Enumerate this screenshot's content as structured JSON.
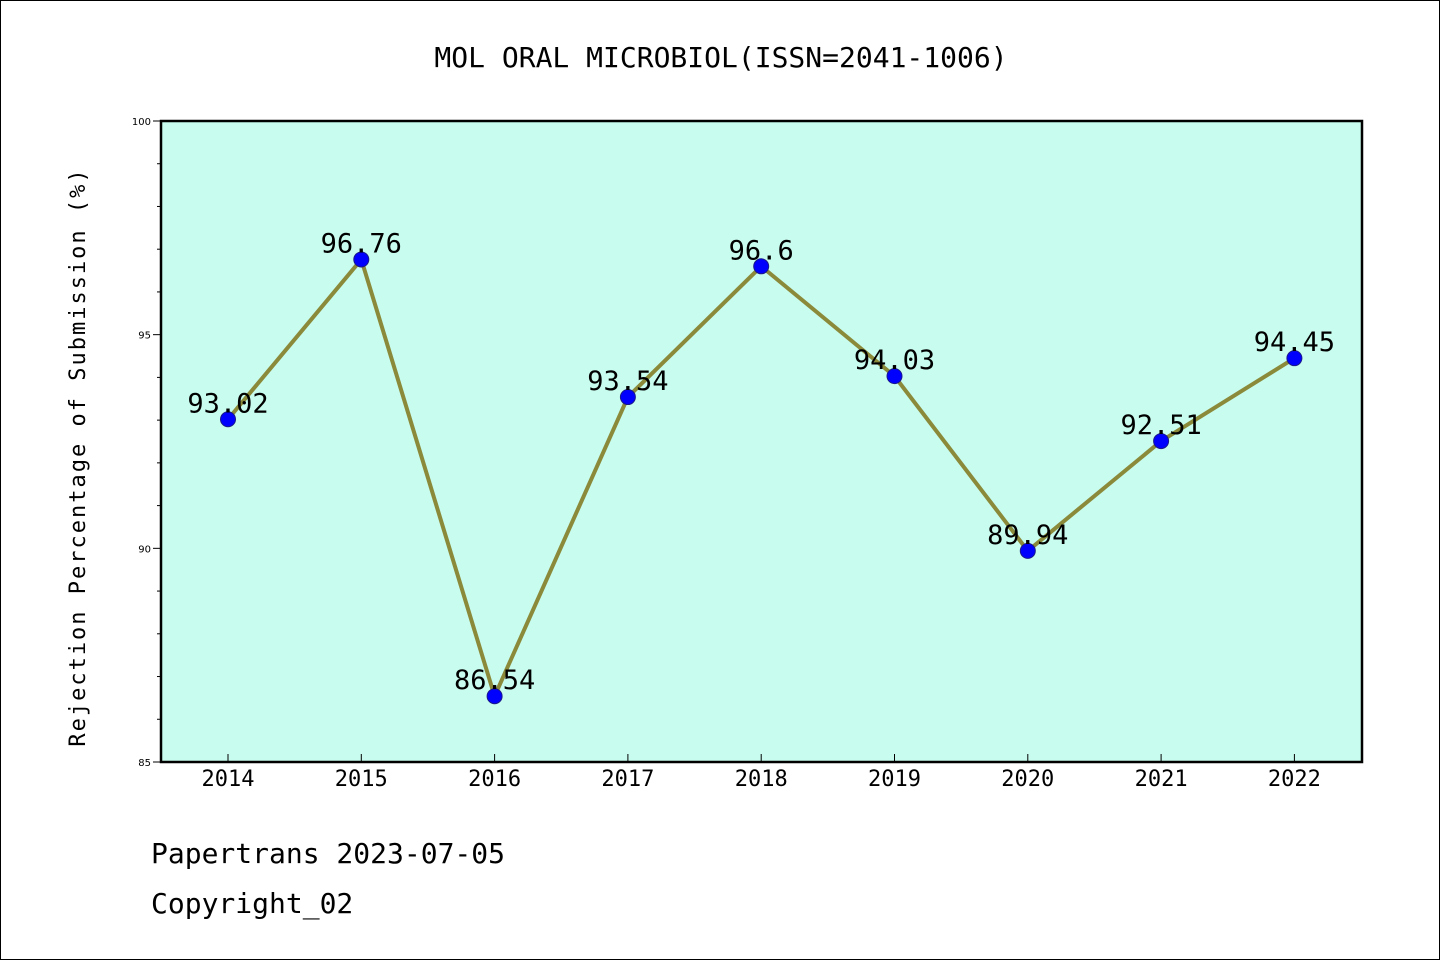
{
  "chart_data": {
    "type": "line",
    "title": "MOL ORAL MICROBIOL(ISSN=2041-1006)",
    "xlabel": "",
    "ylabel": "Rejection Percentage of Submission (%)",
    "categories": [
      "2014",
      "2015",
      "2016",
      "2017",
      "2018",
      "2019",
      "2020",
      "2021",
      "2022"
    ],
    "series": [
      {
        "values": [
          93.02,
          96.76,
          86.54,
          93.54,
          96.6,
          94.03,
          89.94,
          92.51,
          94.45
        ],
        "data_labels": [
          "93.02",
          "96.76",
          "86.54",
          "93.54",
          "96.6",
          "94.03",
          "89.94",
          "92.51",
          "94.45"
        ]
      }
    ],
    "ylim": [
      85,
      100
    ],
    "y_ticks": [
      "85",
      "90",
      "95",
      "100"
    ],
    "grid": false,
    "colors": {
      "plot_background": "#c8fcee",
      "line": "#8b8a3a",
      "marker": "#0000ff",
      "marker_edge": "#1a1a8a"
    }
  },
  "footer": {
    "line1": "Papertrans 2023-07-05",
    "line2": "Copyright_02"
  }
}
